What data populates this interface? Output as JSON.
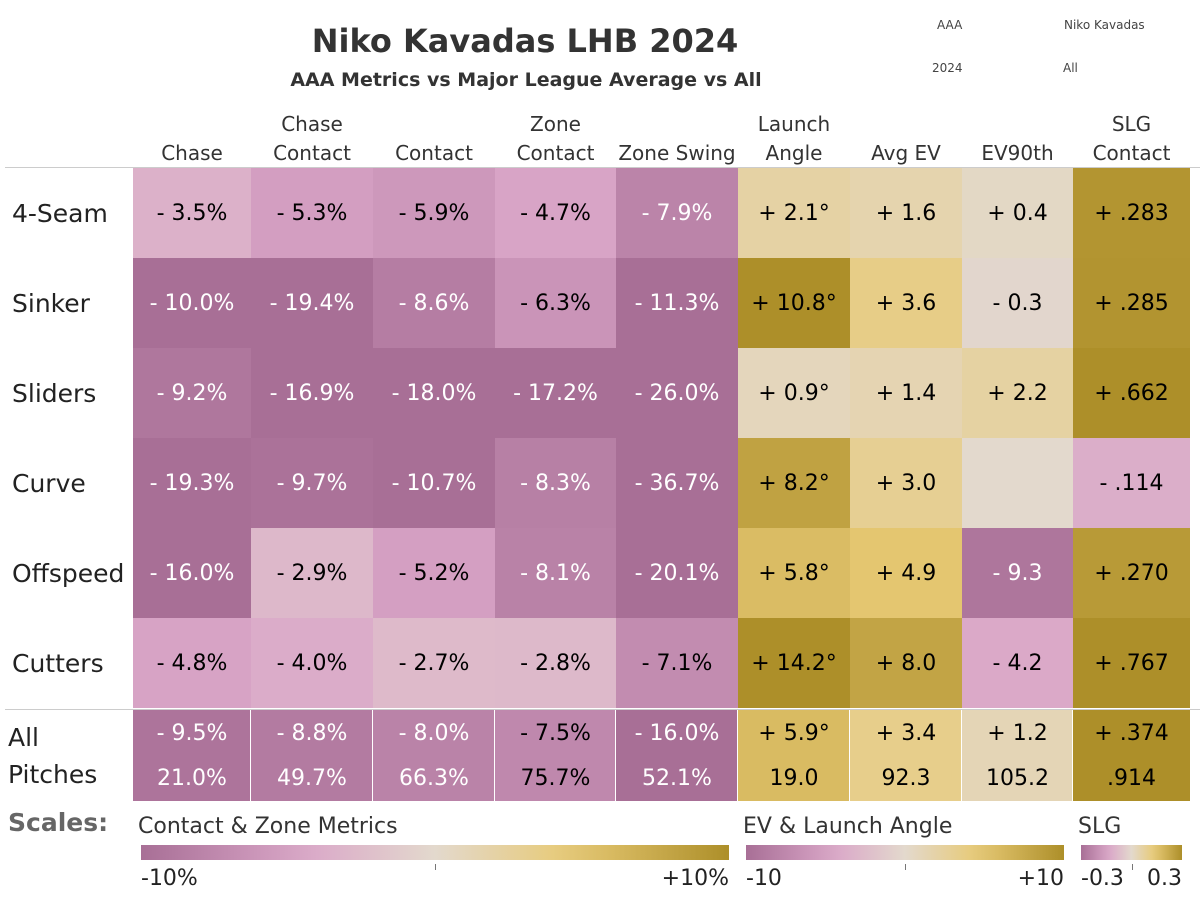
{
  "title": "Niko Kavadas LHB 2024",
  "subtitle": "AAA Metrics vs Major League Average vs All",
  "filters": {
    "level": "AAA",
    "player": "Niko Kavadas",
    "year": "2024",
    "pitch_filter": "All"
  },
  "columns": [
    {
      "line1": "",
      "line2": "Chase"
    },
    {
      "line1": "Chase",
      "line2": "Contact"
    },
    {
      "line1": "",
      "line2": "Contact"
    },
    {
      "line1": "Zone",
      "line2": "Contact"
    },
    {
      "line1": "",
      "line2": "Zone Swing"
    },
    {
      "line1": "Launch",
      "line2": "Angle"
    },
    {
      "line1": "",
      "line2": "Avg EV"
    },
    {
      "line1": "",
      "line2": "EV90th"
    },
    {
      "line1": "SLG",
      "line2": "Contact"
    }
  ],
  "colors": {
    "gold_dark": "#ad8f29",
    "mauve_dark": "#a86f96",
    "neutral": "#e3d9cd"
  },
  "chart_data": {
    "type": "heatmap",
    "title": "Niko Kavadas LHB 2024",
    "rows": [
      "4-Seam",
      "Sinker",
      "Sliders",
      "Curve",
      "Offspeed",
      "Cutters"
    ],
    "columns": [
      "Chase",
      "Chase Contact",
      "Contact",
      "Zone Contact",
      "Zone Swing",
      "Launch Angle",
      "Avg EV",
      "EV90th",
      "SLG Contact"
    ],
    "values": [
      [
        -3.5,
        -5.3,
        -5.9,
        -4.7,
        -7.9,
        2.1,
        1.6,
        0.4,
        0.283
      ],
      [
        -10.0,
        -19.4,
        -8.6,
        -6.3,
        -11.3,
        10.8,
        3.6,
        -0.3,
        0.285
      ],
      [
        -9.2,
        -16.9,
        -18.0,
        -17.2,
        -26.0,
        0.9,
        1.4,
        2.2,
        0.662
      ],
      [
        -19.3,
        -9.7,
        -10.7,
        -8.3,
        -36.7,
        8.2,
        3.0,
        null,
        -0.114
      ],
      [
        -16.0,
        -2.9,
        -5.2,
        -8.1,
        -20.1,
        5.8,
        4.9,
        -9.3,
        0.27
      ],
      [
        -4.8,
        -4.0,
        -2.7,
        -2.8,
        -7.1,
        14.2,
        8.0,
        -4.2,
        0.767
      ]
    ],
    "labels": [
      [
        "- 3.5%",
        "- 5.3%",
        "- 5.9%",
        "- 4.7%",
        "- 7.9%",
        "+ 2.1°",
        "+ 1.6",
        "+ 0.4",
        "+ .283"
      ],
      [
        "- 10.0%",
        "- 19.4%",
        "- 8.6%",
        "- 6.3%",
        "- 11.3%",
        "+ 10.8°",
        "+ 3.6",
        "- 0.3",
        "+ .285"
      ],
      [
        "- 9.2%",
        "- 16.9%",
        "- 18.0%",
        "- 17.2%",
        "- 26.0%",
        "+ 0.9°",
        "+ 1.4",
        "+ 2.2",
        "+ .662"
      ],
      [
        "- 19.3%",
        "- 9.7%",
        "- 10.7%",
        "- 8.3%",
        "- 36.7%",
        "+ 8.2°",
        "+ 3.0",
        "",
        "- .114"
      ],
      [
        "- 16.0%",
        "- 2.9%",
        "- 5.2%",
        "- 8.1%",
        "- 20.1%",
        "+ 5.8°",
        "+ 4.9",
        "- 9.3",
        "+ .270"
      ],
      [
        "- 4.8%",
        "- 4.0%",
        "- 2.7%",
        "- 2.8%",
        "- 7.1%",
        "+ 14.2°",
        "+ 8.0",
        "- 4.2",
        "+ .767"
      ]
    ],
    "all_pitches": {
      "label_line1": "All",
      "label_line2": "Pitches",
      "diff_values": [
        -9.5,
        -8.8,
        -8.0,
        -7.5,
        -16.0,
        5.9,
        3.4,
        1.2,
        0.374
      ],
      "diff_labels": [
        "- 9.5%",
        "- 8.8%",
        "- 8.0%",
        "- 7.5%",
        "- 16.0%",
        "+ 5.9°",
        "+ 3.4",
        "+ 1.2",
        "+ .374"
      ],
      "actual_labels": [
        "21.0%",
        "49.7%",
        "66.3%",
        "75.7%",
        "52.1%",
        "19.0",
        "92.3",
        "105.2",
        ".914"
      ]
    },
    "scales": [
      {
        "name": "Contact & Zone Metrics",
        "min": -10,
        "max": 10,
        "min_label": "-10%",
        "max_label": "+10%"
      },
      {
        "name": "EV & Launch Angle",
        "min": -10,
        "max": 10,
        "min_label": "-10",
        "max_label": "+10"
      },
      {
        "name": "SLG",
        "min": -0.3,
        "max": 0.3,
        "min_label": "-0.3",
        "max_label": "0.3"
      }
    ]
  },
  "scales_label": "Scales:"
}
